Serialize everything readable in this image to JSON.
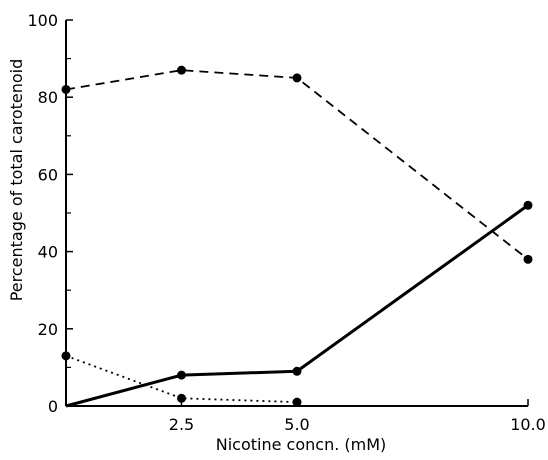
{
  "chart_data": {
    "type": "line",
    "title": "",
    "xlabel": "Nicotine concn. (mM)",
    "ylabel": "Percentage of total carotenoid",
    "x": [
      0,
      2.5,
      5.0,
      10.0
    ],
    "xlim": [
      0,
      10.0
    ],
    "ylim": [
      0,
      100
    ],
    "x_ticks": [
      "2.5",
      "5.0",
      "10.0"
    ],
    "y_ticks": [
      "0",
      "20",
      "40",
      "60",
      "80",
      "100"
    ],
    "grid": false,
    "legend": "none",
    "series": [
      {
        "style": "dashed",
        "values": [
          82,
          87,
          85,
          38
        ]
      },
      {
        "style": "solid",
        "values": [
          0,
          8,
          9,
          52
        ]
      },
      {
        "style": "dotted",
        "values": [
          13,
          2,
          1,
          null
        ]
      }
    ]
  }
}
